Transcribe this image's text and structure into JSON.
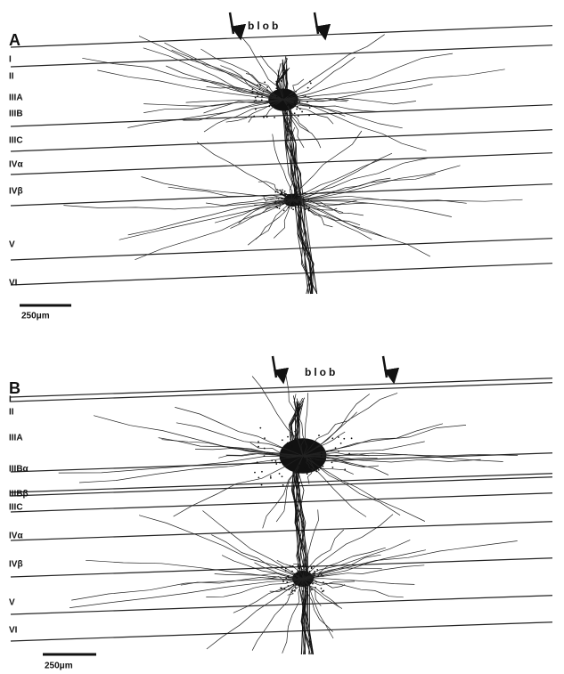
{
  "panels": [
    {
      "label": "A",
      "annotation": "blob",
      "layers": [
        "I",
        "II",
        "IIIA",
        "IIIB",
        "IIIC",
        "IVα",
        "IVβ",
        "V",
        "VI"
      ],
      "scale_bar": "250μm"
    },
    {
      "label": "B",
      "annotation": "blob",
      "layers": [
        "I",
        "II",
        "IIIA",
        "IIIBα",
        "IIIBβ",
        "IIIC",
        "IVα",
        "IVβ",
        "V",
        "VI"
      ],
      "scale_bar": "250μm"
    }
  ]
}
